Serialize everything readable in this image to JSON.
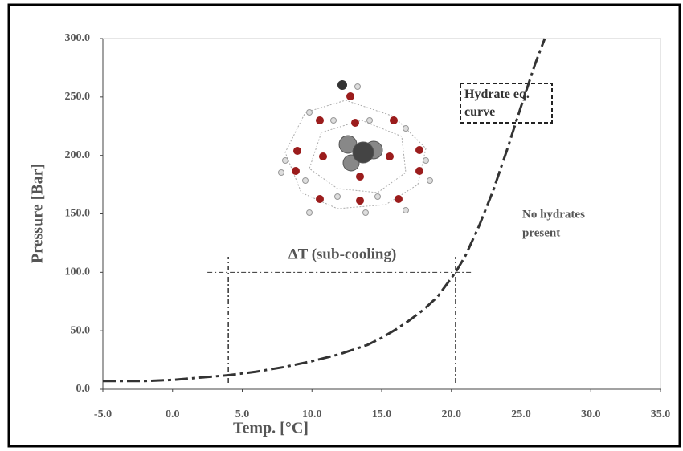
{
  "chart_data": {
    "type": "line",
    "x_label": "Temp. [°C]",
    "y_label": "Pressure [Bar]",
    "xlim": [
      -5,
      35
    ],
    "ylim": [
      0,
      300
    ],
    "xticks": [
      {
        "value": -5,
        "label": "-5.0"
      },
      {
        "value": 0,
        "label": "0.0"
      },
      {
        "value": 5,
        "label": "5.0"
      },
      {
        "value": 10,
        "label": "10.0"
      },
      {
        "value": 15,
        "label": "15.0"
      },
      {
        "value": 20,
        "label": "20.0"
      },
      {
        "value": 25,
        "label": "25.0"
      },
      {
        "value": 30,
        "label": "30.0"
      },
      {
        "value": 35,
        "label": "35.0"
      }
    ],
    "yticks": [
      {
        "value": 0,
        "label": "0.0"
      },
      {
        "value": 50,
        "label": "50.0"
      },
      {
        "value": 100,
        "label": "100.0"
      },
      {
        "value": 150,
        "label": "150.0"
      },
      {
        "value": 200,
        "label": "200.0"
      },
      {
        "value": 250,
        "label": "250.0"
      },
      {
        "value": 300,
        "label": "300.0"
      }
    ],
    "series": [
      {
        "name": "Hydrate eq. curve",
        "color": "#333333",
        "x": [
          -5,
          -2,
          0,
          2,
          4,
          6,
          8,
          10,
          12,
          14,
          15,
          16,
          17,
          18,
          19,
          20.3,
          21,
          22,
          23,
          24,
          25,
          26,
          26.7
        ],
        "values": [
          7,
          7,
          8,
          10,
          12,
          15,
          19,
          24,
          30,
          38,
          44,
          51,
          59,
          68,
          79,
          100,
          114,
          140,
          170,
          205,
          242,
          278,
          300
        ]
      }
    ],
    "reference_x": [
      4,
      20.3
    ],
    "reference_y": {
      "value": 100,
      "x": [
        2.5,
        21.5
      ]
    },
    "annotations": [
      "ΔT (sub-cooling)",
      "No hydrates",
      "present"
    ]
  }
}
